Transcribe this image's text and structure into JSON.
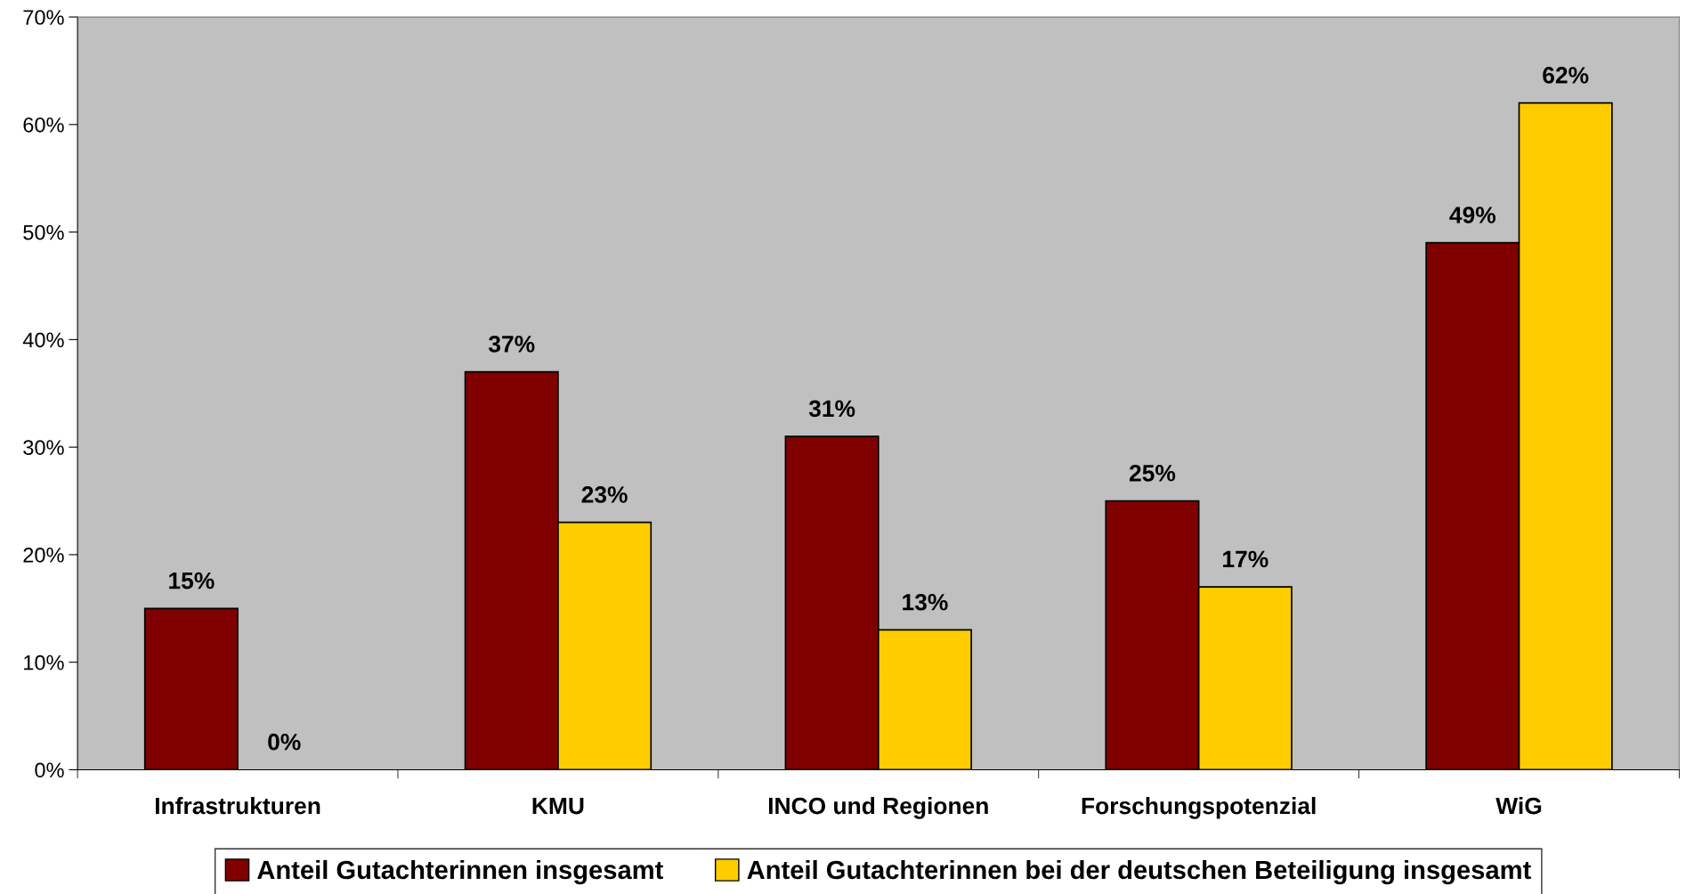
{
  "chart_data": {
    "type": "bar",
    "categories": [
      "Infrastrukturen",
      "KMU",
      "INCO und Regionen",
      "Forschungspotenzial",
      "WiG"
    ],
    "series": [
      {
        "name": "Anteil Gutachterinnen insgesamt",
        "color": "#800000",
        "values": [
          15,
          37,
          31,
          25,
          49
        ]
      },
      {
        "name": "Anteil Gutachterinnen bei der deutschen Beteiligung insgesamt",
        "color": "#ffcc00",
        "values": [
          0,
          23,
          13,
          17,
          62
        ]
      }
    ],
    "ylim": [
      0,
      70
    ],
    "yticks": [
      {
        "value": 0,
        "label": "0%"
      },
      {
        "value": 10,
        "label": "10%"
      },
      {
        "value": 20,
        "label": "20%"
      },
      {
        "value": 30,
        "label": "30%"
      },
      {
        "value": 40,
        "label": "40%"
      },
      {
        "value": 50,
        "label": "50%"
      },
      {
        "value": 60,
        "label": "60%"
      },
      {
        "value": 70,
        "label": "70%"
      }
    ],
    "value_labels": [
      [
        "15%",
        "37%",
        "31%",
        "25%",
        "49%"
      ],
      [
        "0%",
        "23%",
        "13%",
        "17%",
        "62%"
      ]
    ],
    "grid": false,
    "legend": "bottom"
  }
}
